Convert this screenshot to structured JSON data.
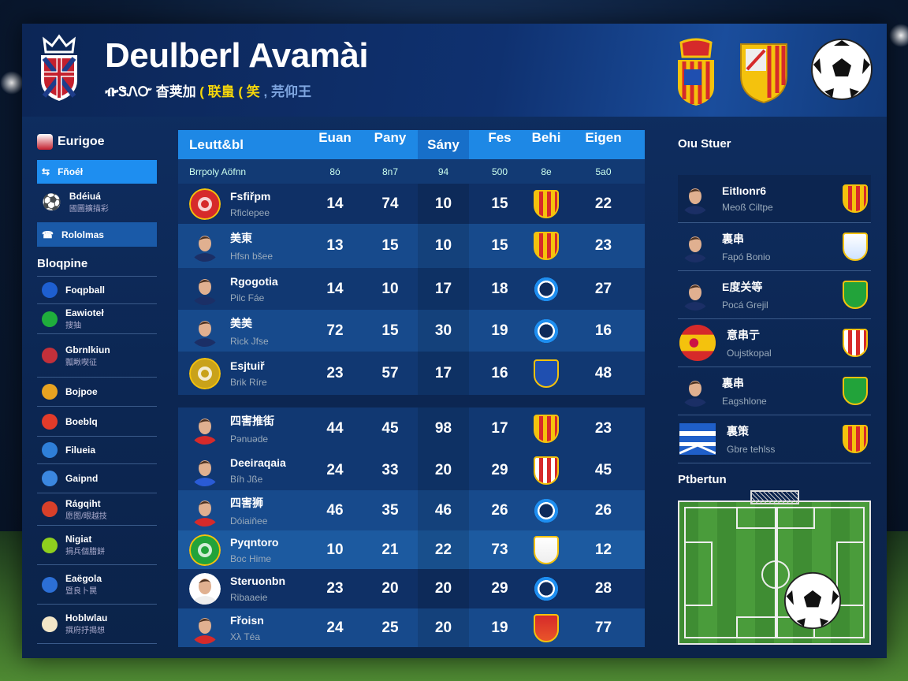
{
  "header": {
    "title": "Deulberl Avamài",
    "subtitle": [
      {
        "t": "ᎇᏕᏁᏅ 杳荚加 ",
        "c": "w"
      },
      {
        "t": "( 联蛗 ( 笑",
        "c": "y"
      },
      {
        "t": " , 芫仰王",
        "c": "b"
      }
    ]
  },
  "colors": {
    "accent": "#1e88e5",
    "panel": "#0f2f63",
    "highlight": "#1a5aa8"
  },
  "sidebar": {
    "header": "Eurigoe",
    "active": "Fňoéł",
    "item1": {
      "label": "Bdéiuá",
      "sub": "國圖擴描彩"
    },
    "highlight": "Rololmas",
    "section": "Bloqpine",
    "items": [
      {
        "label": "Foqpball",
        "sub": "",
        "icon": "#1e5fd0"
      },
      {
        "label": "Eawioteł",
        "sub": "搜抽",
        "icon": "#1fae3c"
      },
      {
        "label": "Gbrnlkiun",
        "sub": "瓢瞅喫征",
        "icon": "#c3303a"
      },
      {
        "label": "Bojpoe",
        "sub": "",
        "icon": "#e8a321"
      },
      {
        "label": "Boeblq",
        "sub": "",
        "icon": "#e23b2a"
      },
      {
        "label": "Filueia",
        "sub": "",
        "icon": "#2f7fd8"
      },
      {
        "label": "Gaipnd",
        "sub": "",
        "icon": "#3b87e0"
      },
      {
        "label": "Rágqiht",
        "sub": "愿图/眼越技",
        "icon": "#d8402a"
      },
      {
        "label": "Nigiat",
        "sub": "捐兵個腊餅",
        "icon": "#8fcf1e"
      },
      {
        "label": "Eaëgola",
        "sub": "暨良卜罠",
        "icon": "#2c6fd6"
      },
      {
        "label": "Hoblwlau",
        "sub": "撰府抒揭想",
        "icon": "#f2e6c8"
      }
    ]
  },
  "table": {
    "title": "Leutt&bl",
    "columns": [
      "Euan",
      "Pany",
      "Sány",
      "Fes",
      "Behi",
      "Eigen"
    ],
    "subheader": {
      "label": "Brrpoly Aöfnn",
      "values": [
        "8ó",
        "8n7",
        "94",
        "500",
        "8e",
        "5a0"
      ]
    },
    "rows": [
      {
        "name": "Fsfiřpm",
        "sub": "Rficlepee",
        "v": [
          "14",
          "74",
          "10",
          "15",
          "22"
        ],
        "badge": "striped",
        "avatar": "crest-red"
      },
      {
        "name": "美東",
        "sub": "Hfsn bšee",
        "v": [
          "13",
          "15",
          "10",
          "15",
          "23"
        ],
        "badge": "striped",
        "avatar": "player"
      },
      {
        "name": "Rgogotia",
        "sub": "Pilc Fáe",
        "v": [
          "14",
          "10",
          "17",
          "18",
          "27"
        ],
        "badge": "circle",
        "avatar": "player"
      },
      {
        "name": "美美",
        "sub": "Rick Jfse",
        "v": [
          "72",
          "15",
          "30",
          "19",
          "16"
        ],
        "badge": "circle",
        "avatar": "player"
      },
      {
        "name": "Esjtuiř",
        "sub": "Brik Ríre",
        "v": [
          "23",
          "57",
          "17",
          "16",
          "48"
        ],
        "badge": "shield-blue",
        "avatar": "crest-target"
      },
      {
        "name": "四害推街",
        "sub": "Pənuəde",
        "v": [
          "44",
          "45",
          "98",
          "17",
          "23"
        ],
        "badge": "striped",
        "avatar": "player-red"
      },
      {
        "name": "Deeiraqaia",
        "sub": "Bíh Jße",
        "v": [
          "24",
          "33",
          "20",
          "29",
          "45"
        ],
        "badge": "redwhite",
        "avatar": "player-blue"
      },
      {
        "name": "四害狮",
        "sub": "Dóiaiňee",
        "v": [
          "46",
          "35",
          "46",
          "26",
          "26"
        ],
        "badge": "circle",
        "avatar": "player-red"
      },
      {
        "name": "Pyqntoro",
        "sub": "Boc Hime",
        "v": [
          "10",
          "21",
          "22",
          "73",
          "12"
        ],
        "badge": "shield-white",
        "avatar": "crest-green"
      },
      {
        "name": "Steruonbn",
        "sub": "Ribaaeie",
        "v": [
          "23",
          "20",
          "20",
          "29",
          "28"
        ],
        "badge": "circle",
        "avatar": "player-white"
      },
      {
        "name": "Fřoisn",
        "sub": "Xλ Téa",
        "v": [
          "24",
          "25",
          "20",
          "19",
          "77"
        ],
        "badge": "shield-red",
        "avatar": "player-red"
      }
    ]
  },
  "right": {
    "title": "Oıu Stuer",
    "rows": [
      {
        "name": "Eitlıonr6",
        "sub": "Meoß Ciltpe",
        "avatar": "player",
        "badge": "striped"
      },
      {
        "name": "裏串",
        "sub": "Fapó Bonio",
        "avatar": "player",
        "badge": "blue-shield"
      },
      {
        "name": "E度关等",
        "sub": "Pocá Grejil",
        "avatar": "player",
        "badge": "green"
      },
      {
        "name": "意串亍",
        "sub": "Oujstkopal",
        "avatar": "spain-flag",
        "badge": "redwhite"
      },
      {
        "name": "裏串",
        "sub": "Eagshlone",
        "avatar": "player",
        "badge": "green"
      },
      {
        "name": "裏策",
        "sub": "Gbre tehlss",
        "avatar": "stripes-flag",
        "badge": "crown-striped"
      }
    ],
    "pitch_title": "Ptbertun"
  }
}
